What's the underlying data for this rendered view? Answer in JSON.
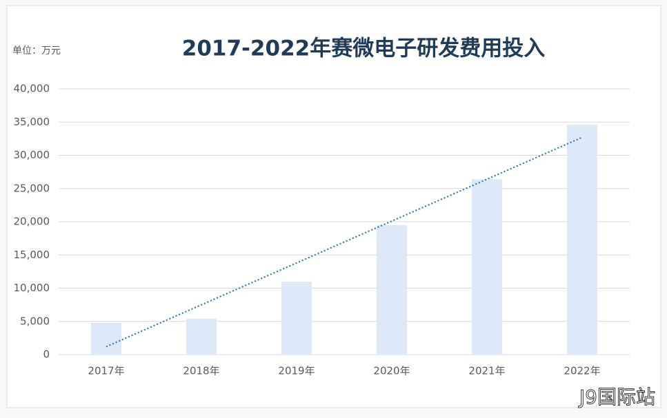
{
  "chart_data": {
    "type": "bar",
    "title": "2017-2022年赛微电子研发费用投入",
    "unit_label": "单位：万元",
    "watermark": "J9国际站",
    "categories": [
      "2017年",
      "2018年",
      "2019年",
      "2020年",
      "2021年",
      "2022年"
    ],
    "values": [
      4800,
      5400,
      11000,
      19500,
      26400,
      34600
    ],
    "color": "#dde8f8",
    "trendline": "linear",
    "trendline_color": "#2e75b6",
    "ylim": [
      0,
      40000
    ],
    "yticks": [
      0,
      {
        "value": 5000,
        "label": "5,000"
      },
      {
        "value": 10000,
        "label": "10,000"
      },
      {
        "value": 15000,
        "label": "15,000"
      },
      {
        "value": 20000,
        "label": "20,000"
      },
      {
        "value": 25000,
        "label": "25,000"
      },
      {
        "value": 30000,
        "label": "30,000"
      },
      {
        "value": 35000,
        "label": "35,000"
      },
      {
        "value": 40000,
        "label": "40,000"
      }
    ],
    "grid": true
  }
}
